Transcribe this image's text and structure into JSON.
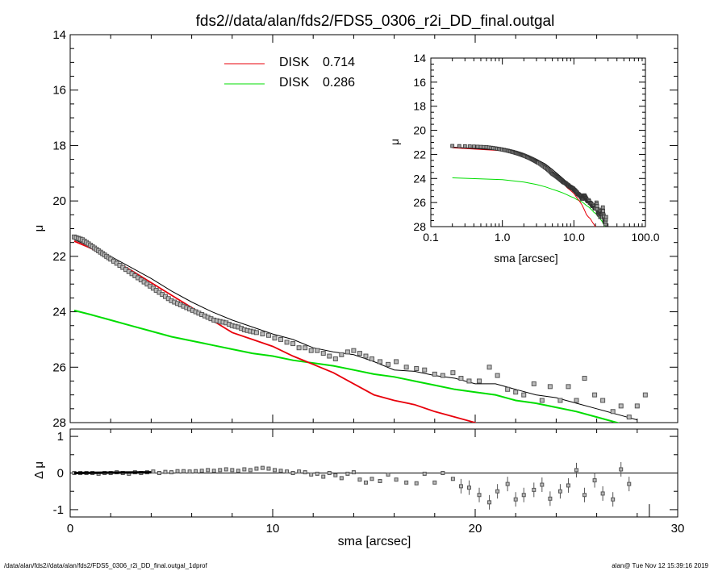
{
  "title": "fds2//data/alan/fds2/FDS5_0306_r2i_DD_final.outgal",
  "footer": {
    "left": "/data/alan/fds2//data/alan/fds2/FDS5_0306_r2i_DD_final.outgal_1dprof",
    "right": "alan@  Tue Nov 12 15:39:16 2019"
  },
  "colors": {
    "total": "#000000",
    "disk1": "#e8000b",
    "disk2": "#00dd00",
    "points": "#555555"
  },
  "legend": [
    {
      "label": "DISK",
      "value": "0.714",
      "color": "#e8000b"
    },
    {
      "label": "DISK",
      "value": "0.286",
      "color": "#00dd00"
    }
  ],
  "chart_data": [
    {
      "id": "main",
      "type": "scatter+line",
      "xlabel": "sma [arcsec]",
      "ylabel": "μ",
      "xlim": [
        0,
        30
      ],
      "ylim": [
        28,
        14
      ],
      "xticks": [
        0,
        10,
        20,
        30
      ],
      "yticks": [
        14,
        16,
        18,
        20,
        22,
        24,
        26,
        28
      ],
      "observed": {
        "x": [
          0.2,
          0.4,
          0.6,
          0.8,
          1.0,
          1.2,
          1.4,
          1.6,
          1.8,
          2.0,
          2.3,
          2.6,
          2.9,
          3.2,
          3.5,
          3.8,
          4.1,
          4.4,
          4.7,
          5.0,
          5.3,
          5.6,
          5.9,
          6.2,
          6.5,
          6.8,
          7.1,
          7.4,
          7.7,
          8.0,
          8.3,
          8.6,
          8.9,
          9.2,
          9.5,
          9.8,
          10.1,
          10.4,
          10.7,
          11.0,
          11.3,
          11.6,
          11.9,
          12.2,
          12.5,
          12.8,
          13.1,
          13.4,
          13.7,
          14.0,
          14.3,
          14.6,
          14.9,
          15.3,
          15.7,
          16.1,
          16.6,
          17.1,
          17.5,
          18.0,
          18.4,
          18.9,
          19.3,
          19.7,
          20.2,
          20.7,
          21.1,
          21.6,
          22.0,
          22.4,
          22.9,
          23.3,
          23.7,
          24.2,
          24.6,
          25.0,
          25.4,
          25.9,
          26.3,
          26.8,
          27.2,
          27.6,
          28.0,
          28.4
        ],
        "y": [
          21.3,
          21.35,
          21.4,
          21.5,
          21.6,
          21.7,
          21.8,
          21.9,
          22.0,
          22.1,
          22.25,
          22.4,
          22.55,
          22.7,
          22.85,
          23.0,
          23.15,
          23.3,
          23.45,
          23.6,
          23.7,
          23.8,
          23.9,
          24.0,
          24.1,
          24.2,
          24.3,
          24.35,
          24.4,
          24.5,
          24.55,
          24.65,
          24.7,
          24.75,
          24.8,
          24.85,
          24.95,
          25.0,
          25.1,
          25.15,
          25.3,
          25.3,
          25.4,
          25.4,
          25.5,
          25.6,
          25.7,
          25.55,
          25.45,
          25.4,
          25.5,
          25.6,
          25.7,
          25.8,
          25.9,
          25.8,
          26.0,
          26.05,
          26.1,
          26.25,
          26.3,
          26.2,
          26.4,
          26.5,
          26.5,
          26.0,
          26.3,
          26.8,
          26.9,
          27.0,
          26.6,
          27.2,
          26.7,
          27.2,
          26.7,
          27.2,
          26.4,
          27.0,
          27.2,
          27.6,
          27.4,
          27.8,
          27.4,
          27.0
        ]
      },
      "model_total": {
        "x": [
          0.2,
          1,
          2,
          3,
          4,
          5,
          6,
          7,
          8,
          9,
          10,
          11,
          12,
          13,
          14,
          15,
          16,
          17,
          18,
          19,
          20,
          21,
          22,
          23,
          24,
          25,
          26,
          27,
          28
        ],
        "y": [
          21.4,
          21.65,
          22.0,
          22.4,
          22.8,
          23.25,
          23.65,
          24.0,
          24.3,
          24.55,
          24.8,
          25.0,
          25.3,
          25.45,
          25.55,
          25.8,
          26.1,
          26.15,
          26.3,
          26.4,
          26.6,
          26.6,
          26.8,
          27.0,
          27.1,
          27.3,
          27.5,
          27.7,
          27.9
        ]
      },
      "model_disk1": {
        "x": [
          0.2,
          1,
          2,
          3,
          4,
          5,
          6,
          7,
          8,
          9,
          10,
          11,
          12,
          13,
          14,
          15,
          16,
          17,
          18,
          19,
          20,
          20.3
        ],
        "y": [
          21.45,
          21.7,
          22.1,
          22.5,
          22.95,
          23.4,
          23.85,
          24.3,
          24.75,
          25.0,
          25.25,
          25.6,
          25.9,
          26.2,
          26.6,
          27.0,
          27.2,
          27.35,
          27.6,
          27.8,
          28.0,
          28.2
        ]
      },
      "model_disk2": {
        "x": [
          0.2,
          1,
          2,
          3,
          4,
          5,
          6,
          7,
          8,
          9,
          10,
          11,
          12,
          13,
          14,
          15,
          16,
          17,
          18,
          19,
          20,
          21,
          22,
          23,
          24,
          25,
          26,
          27,
          28
        ],
        "y": [
          23.95,
          24.1,
          24.3,
          24.5,
          24.7,
          24.9,
          25.05,
          25.2,
          25.35,
          25.5,
          25.6,
          25.75,
          25.85,
          25.95,
          26.1,
          26.25,
          26.35,
          26.5,
          26.65,
          26.8,
          26.9,
          27.0,
          27.2,
          27.3,
          27.45,
          27.6,
          27.8,
          28.0,
          28.2
        ]
      }
    },
    {
      "id": "residual",
      "type": "scatter",
      "xlabel": "sma [arcsec]",
      "ylabel": "Δ μ",
      "xlim": [
        0,
        30
      ],
      "ylim": [
        -1.2,
        1.2
      ],
      "xticks": [
        0,
        10,
        20,
        30
      ],
      "yticks": [
        1,
        0,
        -1
      ],
      "x": [
        0.2,
        0.5,
        0.8,
        1.1,
        1.4,
        1.7,
        2.0,
        2.3,
        2.6,
        2.9,
        3.2,
        3.5,
        3.8,
        4.1,
        4.4,
        4.7,
        5.0,
        5.3,
        5.6,
        5.9,
        6.2,
        6.5,
        6.8,
        7.1,
        7.4,
        7.7,
        8.0,
        8.3,
        8.6,
        8.9,
        9.2,
        9.5,
        9.8,
        10.1,
        10.4,
        10.7,
        11.0,
        11.3,
        11.6,
        11.9,
        12.2,
        12.5,
        12.8,
        13.1,
        13.4,
        13.7,
        14.0,
        14.3,
        14.6,
        14.9,
        15.3,
        15.7,
        16.1,
        16.6,
        17.1,
        17.5,
        18.0,
        18.4,
        18.9,
        19.3,
        19.7,
        20.2,
        20.7,
        21.1,
        21.6,
        22.0,
        22.4,
        22.9,
        23.3,
        23.7,
        24.2,
        24.6,
        25.0,
        25.4,
        25.9,
        26.3,
        26.8,
        27.2,
        27.6
      ],
      "y": [
        0.0,
        0.0,
        0.0,
        0.0,
        -0.02,
        0.0,
        0.0,
        0.02,
        0.0,
        -0.02,
        0.02,
        0.0,
        0.02,
        0.04,
        0.0,
        0.03,
        0.02,
        0.05,
        0.05,
        0.04,
        0.05,
        0.06,
        0.08,
        0.06,
        0.08,
        0.1,
        0.08,
        0.06,
        0.1,
        0.08,
        0.12,
        0.14,
        0.12,
        0.08,
        0.06,
        0.04,
        0.0,
        0.04,
        0.02,
        -0.04,
        -0.02,
        -0.1,
        0.0,
        -0.06,
        -0.14,
        -0.02,
        0.02,
        -0.18,
        -0.26,
        -0.16,
        -0.22,
        -0.04,
        -0.18,
        -0.26,
        -0.28,
        -0.02,
        -0.26,
        0.0,
        -0.16,
        -0.36,
        -0.4,
        -0.6,
        -0.8,
        -0.5,
        -0.3,
        -0.72,
        -0.6,
        -0.46,
        -0.32,
        -0.7,
        -0.5,
        -0.34,
        0.08,
        -0.6,
        -0.2,
        -0.56,
        -0.72,
        0.1,
        -0.3
      ]
    },
    {
      "id": "inset",
      "type": "scatter+line",
      "xlabel": "sma [arcsec]",
      "ylabel": "μ",
      "xscale": "log",
      "xlim": [
        0.1,
        100
      ],
      "ylim": [
        28,
        14
      ],
      "xticks": [
        "0.1",
        "1.0",
        "10.0",
        "100.0"
      ],
      "yticks": [
        14,
        16,
        18,
        20,
        22,
        24,
        26,
        28
      ]
    }
  ]
}
